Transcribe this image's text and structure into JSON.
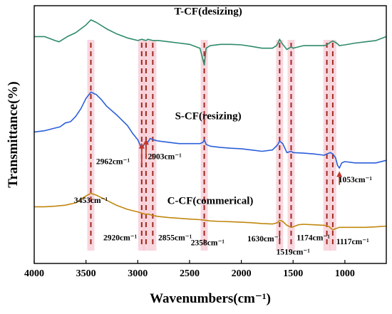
{
  "chart_data": {
    "type": "line",
    "xlabel": "Wavenumbers(cm⁻¹)",
    "ylabel": "Transmittance(%)",
    "xlim": [
      4000,
      600
    ],
    "x_ticks": [
      4000,
      3500,
      3000,
      2500,
      2000,
      1500,
      1000
    ],
    "grid": false,
    "highlight_color": "#f6c9d4",
    "reference_line_color": "#a0281e",
    "arrow_color": "#c0392b",
    "series": [
      {
        "name": "T-CF(desizing)",
        "color": "#2e8b6a",
        "x": [
          4000,
          3900,
          3800,
          3760,
          3720,
          3680,
          3600,
          3500,
          3453,
          3400,
          3300,
          3200,
          3100,
          3000,
          2962,
          2920,
          2903,
          2855,
          2800,
          2700,
          2600,
          2500,
          2400,
          2370,
          2358,
          2340,
          2300,
          2200,
          2100,
          2000,
          1900,
          1800,
          1700,
          1660,
          1640,
          1630,
          1610,
          1560,
          1540,
          1519,
          1500,
          1450,
          1400,
          1300,
          1200,
          1174,
          1140,
          1117,
          1080,
          1053,
          1000,
          900,
          800,
          700,
          600
        ],
        "y": [
          0.88,
          0.88,
          0.865,
          0.86,
          0.87,
          0.88,
          0.895,
          0.925,
          0.945,
          0.935,
          0.91,
          0.89,
          0.875,
          0.865,
          0.87,
          0.865,
          0.87,
          0.865,
          0.865,
          0.86,
          0.855,
          0.85,
          0.835,
          0.79,
          0.77,
          0.835,
          0.845,
          0.85,
          0.85,
          0.848,
          0.842,
          0.835,
          0.835,
          0.845,
          0.86,
          0.87,
          0.855,
          0.83,
          0.835,
          0.84,
          0.835,
          0.84,
          0.845,
          0.845,
          0.845,
          0.848,
          0.858,
          0.863,
          0.855,
          0.845,
          0.848,
          0.855,
          0.86,
          0.865,
          0.88
        ]
      },
      {
        "name": "S-CF(resizing)",
        "color": "#2b5fd9",
        "x": [
          4000,
          3900,
          3800,
          3750,
          3700,
          3650,
          3600,
          3550,
          3500,
          3453,
          3400,
          3350,
          3300,
          3200,
          3100,
          3050,
          3000,
          2962,
          2935,
          2920,
          2903,
          2880,
          2855,
          2800,
          2700,
          2600,
          2500,
          2400,
          2370,
          2358,
          2340,
          2300,
          2200,
          2100,
          2000,
          1900,
          1800,
          1700,
          1650,
          1630,
          1600,
          1560,
          1519,
          1500,
          1400,
          1300,
          1200,
          1174,
          1140,
          1117,
          1090,
          1070,
          1053,
          1030,
          1000,
          900,
          800,
          700,
          600
        ],
        "y": [
          0.51,
          0.515,
          0.525,
          0.53,
          0.545,
          0.55,
          0.57,
          0.6,
          0.64,
          0.665,
          0.655,
          0.635,
          0.61,
          0.575,
          0.535,
          0.505,
          0.48,
          0.445,
          0.465,
          0.475,
          0.47,
          0.485,
          0.48,
          0.475,
          0.47,
          0.465,
          0.465,
          0.465,
          0.47,
          0.48,
          0.462,
          0.455,
          0.45,
          0.447,
          0.445,
          0.44,
          0.435,
          0.44,
          0.46,
          0.475,
          0.465,
          0.43,
          0.435,
          0.43,
          0.428,
          0.425,
          0.42,
          0.425,
          0.43,
          0.425,
          0.41,
          0.38,
          0.37,
          0.39,
          0.395,
          0.39,
          0.39,
          0.39,
          0.4
        ]
      },
      {
        "name": "C-CF(commerical)",
        "color": "#c0870f",
        "x": [
          4000,
          3900,
          3800,
          3700,
          3600,
          3500,
          3453,
          3400,
          3300,
          3200,
          3100,
          3000,
          2962,
          2920,
          2900,
          2855,
          2800,
          2700,
          2600,
          2500,
          2400,
          2358,
          2300,
          2200,
          2100,
          2000,
          1900,
          1800,
          1700,
          1650,
          1630,
          1600,
          1560,
          1519,
          1500,
          1450,
          1400,
          1300,
          1200,
          1174,
          1150,
          1117,
          1090,
          1053,
          1000,
          900,
          800,
          700,
          600
        ],
        "y": [
          0.22,
          0.22,
          0.222,
          0.226,
          0.235,
          0.262,
          0.272,
          0.265,
          0.245,
          0.225,
          0.21,
          0.2,
          0.195,
          0.19,
          0.192,
          0.186,
          0.182,
          0.178,
          0.175,
          0.172,
          0.17,
          0.168,
          0.165,
          0.163,
          0.162,
          0.16,
          0.158,
          0.155,
          0.153,
          0.158,
          0.168,
          0.163,
          0.148,
          0.14,
          0.142,
          0.15,
          0.152,
          0.15,
          0.148,
          0.146,
          0.142,
          0.13,
          0.135,
          0.14,
          0.14,
          0.14,
          0.14,
          0.142,
          0.145
        ]
      }
    ],
    "reference_lines": [
      3453,
      2962,
      2920,
      2855,
      2358,
      1630,
      1519,
      1174,
      1117
    ],
    "annotations": [
      {
        "text": "3453cm⁻¹",
        "x": 3453,
        "y": 0.235
      },
      {
        "text": "2962cm⁻¹",
        "x": 3240,
        "y": 0.385
      },
      {
        "text": "2903cm⁻¹",
        "x": 2740,
        "y": 0.405
      },
      {
        "text": "2920cm⁻¹",
        "x": 3170,
        "y": 0.09
      },
      {
        "text": "2855cm⁻¹",
        "x": 2640,
        "y": 0.09
      },
      {
        "text": "2358cm⁻¹",
        "x": 2325,
        "y": 0.07
      },
      {
        "text": "1630cm⁻¹",
        "x": 1780,
        "y": 0.085
      },
      {
        "text": "1519cm⁻¹",
        "x": 1500,
        "y": 0.035
      },
      {
        "text": "1174cm⁻¹",
        "x": 1305,
        "y": 0.09
      },
      {
        "text": "1117cm⁻¹",
        "x": 925,
        "y": 0.075
      },
      {
        "text": "1053cm⁻¹",
        "x": 900,
        "y": 0.315
      }
    ],
    "arrows": [
      {
        "x": 2962,
        "from": 0.385,
        "to": 0.465
      },
      {
        "x": 2920,
        "from": 0.405,
        "to": 0.48
      },
      {
        "x": 1053,
        "from": 0.305,
        "to": 0.355
      }
    ]
  }
}
